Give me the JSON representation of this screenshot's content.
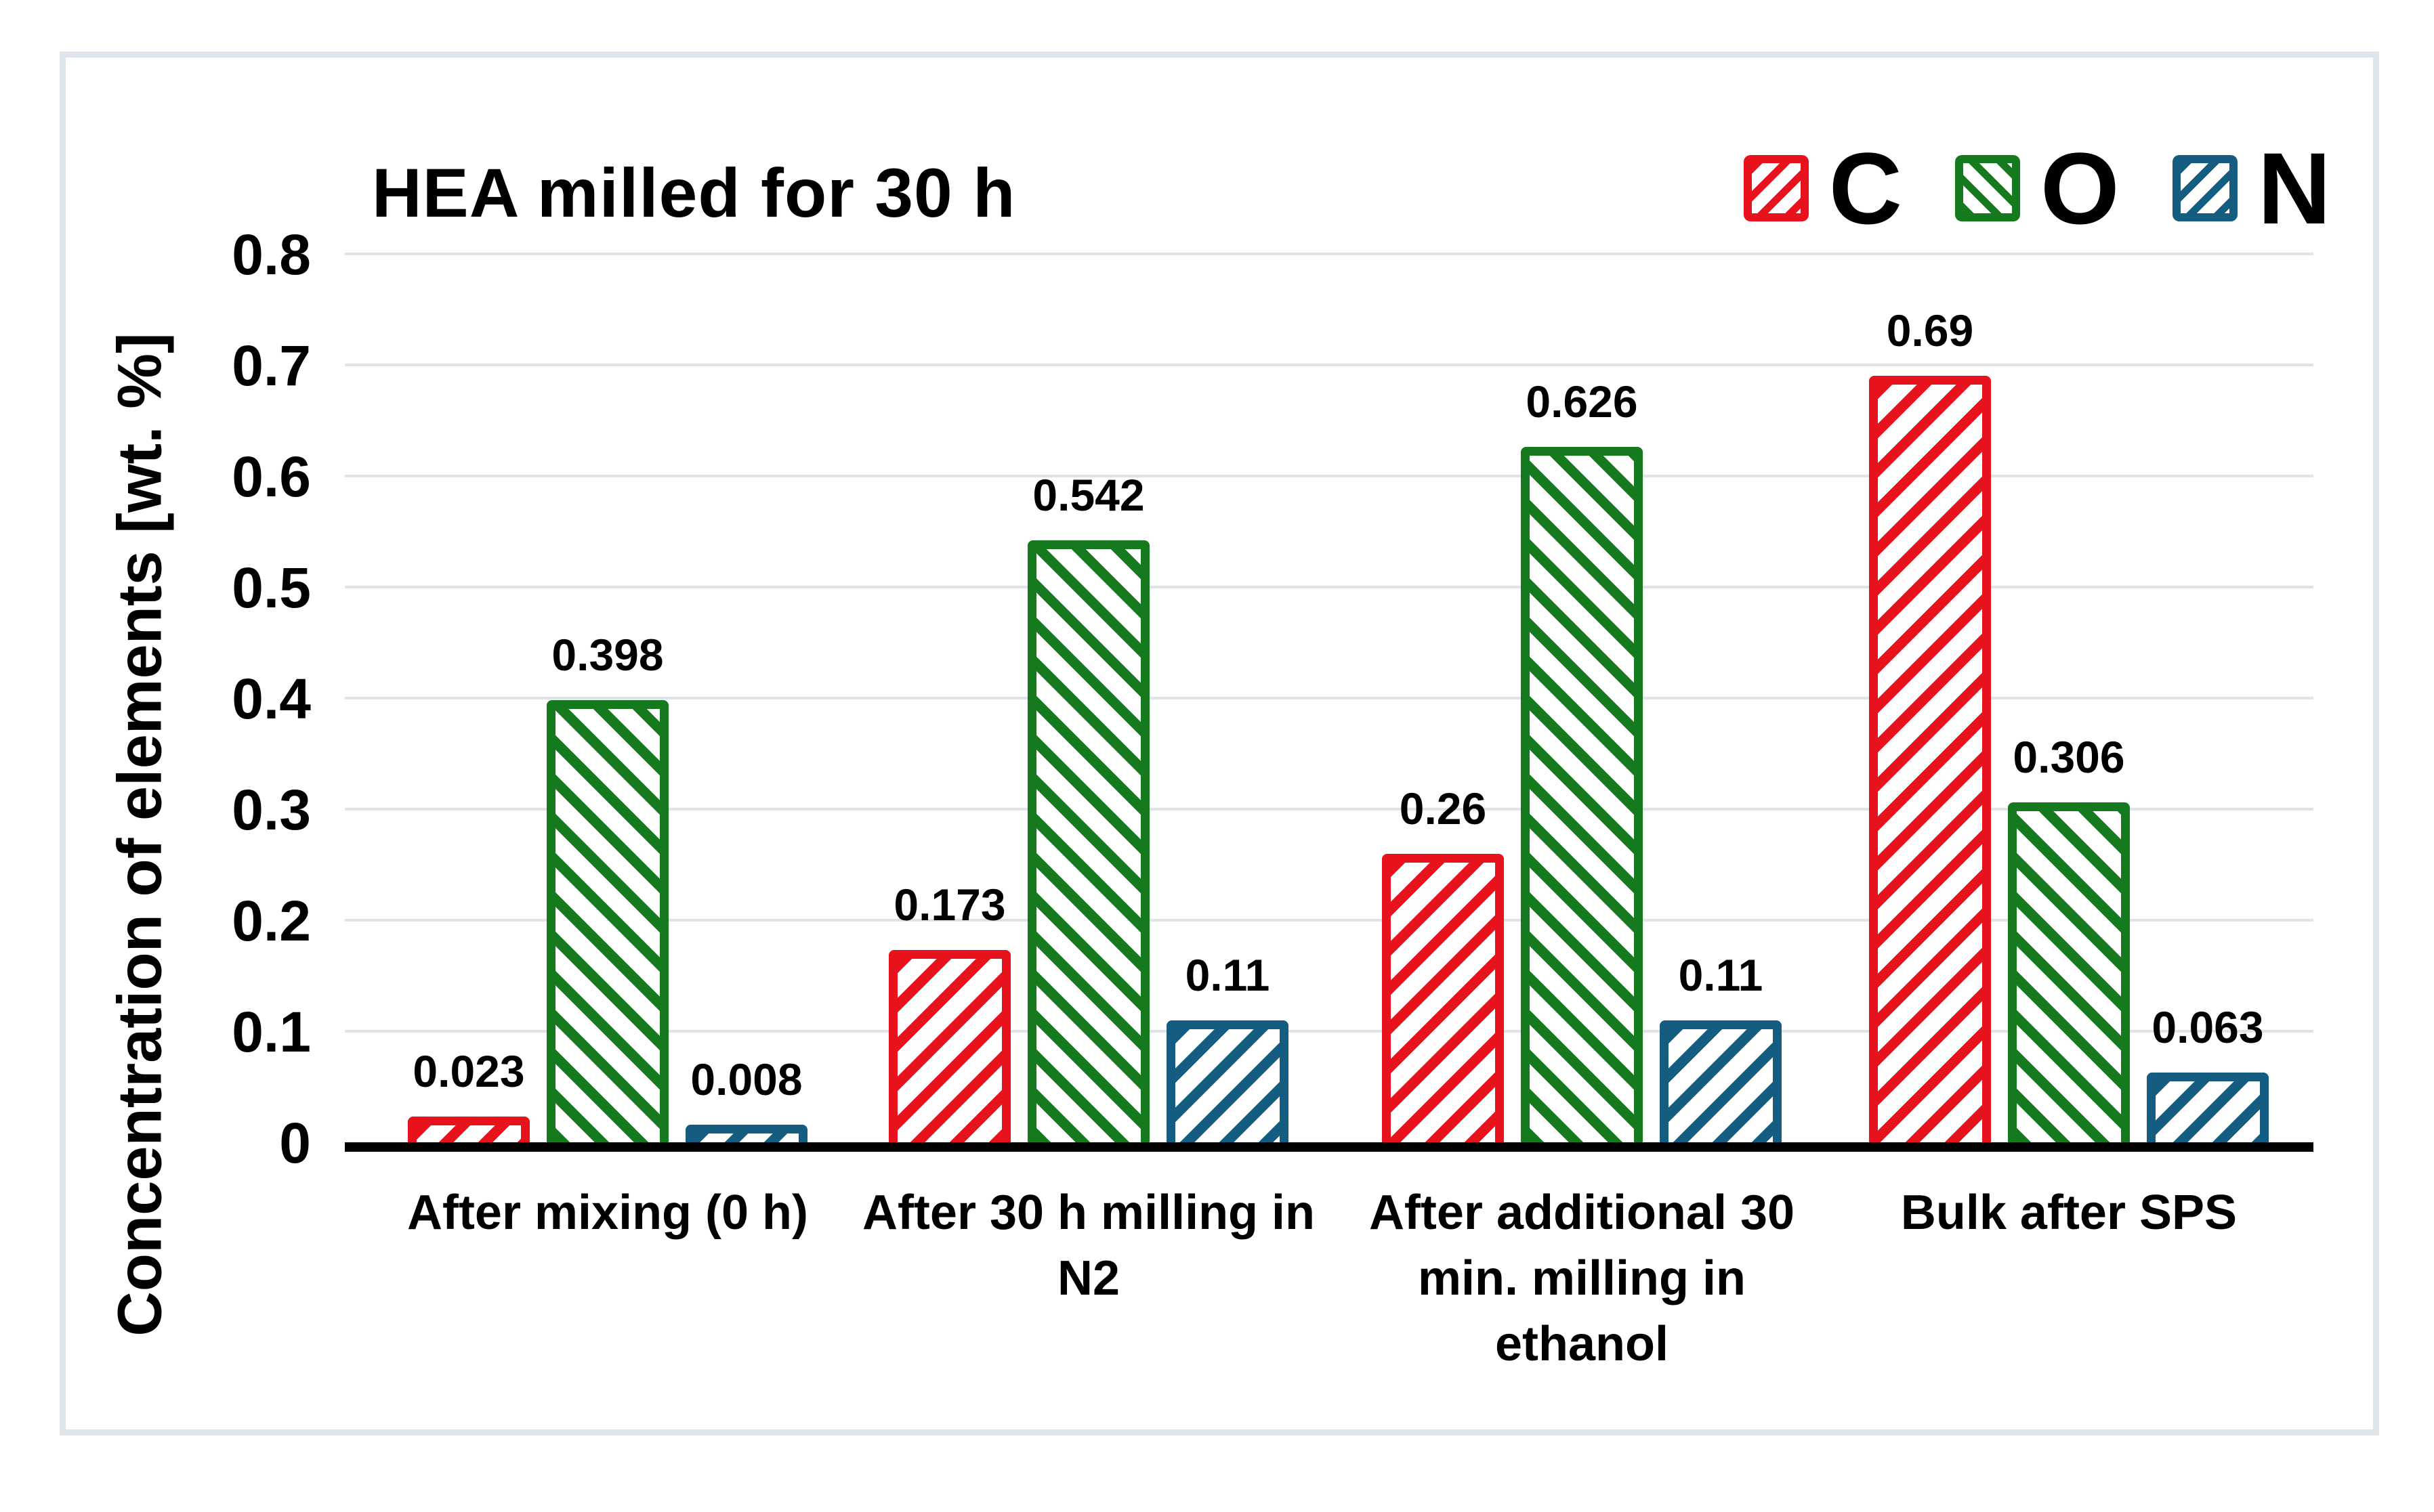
{
  "chart_data": {
    "type": "bar",
    "title": "HEA milled for 30 h",
    "ylabel": "Concentration of elements [wt. %]",
    "xlabel": "",
    "ylim": [
      0,
      0.8
    ],
    "grid": true,
    "legend_position": "top-right",
    "yticks": [
      {
        "label": "0.8",
        "value": 0.8
      },
      {
        "label": "0.7",
        "value": 0.7
      },
      {
        "label": "0.6",
        "value": 0.6
      },
      {
        "label": "0.5",
        "value": 0.5
      },
      {
        "label": "0.4",
        "value": 0.4
      },
      {
        "label": "0.3",
        "value": 0.3
      },
      {
        "label": "0.2",
        "value": 0.2
      },
      {
        "label": "0.1",
        "value": 0.1
      },
      {
        "label": "0",
        "value": 0
      }
    ],
    "categories": [
      "After mixing (0 h)",
      "After 30 h milling in\nN2",
      "After additional 30\nmin. milling in\nethanol",
      "Bulk after SPS"
    ],
    "series": [
      {
        "name": "C",
        "color": "#e8121c",
        "hatch": "/",
        "values": [
          0.023,
          0.173,
          0.26,
          0.69
        ],
        "value_labels": [
          "0.023",
          "0.173",
          "0.26",
          "0.69"
        ]
      },
      {
        "name": "O",
        "color": "#157a1e",
        "hatch": "\\",
        "values": [
          0.398,
          0.542,
          0.626,
          0.306
        ],
        "value_labels": [
          "0.398",
          "0.542",
          "0.626",
          "0.306"
        ]
      },
      {
        "name": "N",
        "color": "#155d80",
        "hatch": "/",
        "values": [
          0.008,
          0.11,
          0.11,
          0.063
        ],
        "value_labels": [
          "0.008",
          "0.11",
          "0.11",
          "0.063"
        ]
      }
    ],
    "colors": {
      "gridline": "#dde3e9",
      "frame_border": "#dfe4eb",
      "axis": "#000000",
      "text": "#000000"
    }
  }
}
